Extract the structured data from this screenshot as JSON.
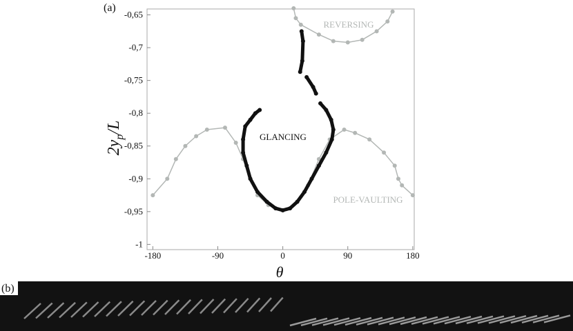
{
  "chart_data": {
    "type": "line",
    "panel_labels": [
      "(a)",
      "(b)"
    ],
    "xlabel": "θ",
    "ylabel": {
      "main": "2y",
      "sub": "p",
      "rest": "/L"
    },
    "xlim": [
      -188,
      182
    ],
    "ylim": [
      -1.008,
      -0.641
    ],
    "xticks": [
      -180,
      -90,
      0,
      90,
      180
    ],
    "yticks": [
      -1,
      {
        "value": -0.95,
        "label": "-0,95"
      },
      {
        "value": -0.9,
        "label": "-0,9"
      },
      {
        "value": -0.85,
        "label": "-0,85"
      },
      {
        "value": -0.8,
        "label": "-0,8"
      },
      {
        "value": -0.75,
        "label": "-0,75"
      },
      {
        "value": -0.7,
        "label": "-0,7"
      },
      {
        "value": -0.65,
        "label": "-0,65"
      }
    ],
    "annotations": [
      "REVERSING",
      "GLANCING",
      "POLE-VAULTING"
    ],
    "series": [
      {
        "name": "POLE-VAULTING",
        "color": "#b3b7b5",
        "x": [
          -180,
          -160,
          -148,
          -135,
          -120,
          -105,
          -80,
          -65,
          -55,
          -45,
          -35,
          -20,
          null,
          20,
          35,
          50,
          65,
          85,
          100,
          120,
          140,
          155,
          160,
          165,
          180
        ],
        "values": [
          -0.925,
          -0.9,
          -0.87,
          -0.85,
          -0.835,
          -0.825,
          -0.822,
          -0.845,
          -0.87,
          -0.9,
          -0.925,
          -0.94,
          null,
          -0.935,
          -0.91,
          -0.87,
          -0.84,
          -0.825,
          -0.83,
          -0.84,
          -0.86,
          -0.88,
          -0.9,
          -0.91,
          -0.925
        ]
      },
      {
        "name": "REVERSING",
        "color": "#b3b7b5",
        "x": [
          15,
          18,
          25,
          50,
          70,
          90,
          110,
          130,
          145,
          152
        ],
        "values": [
          -0.64,
          -0.655,
          -0.665,
          -0.68,
          -0.69,
          -0.692,
          -0.688,
          -0.675,
          -0.66,
          -0.645
        ]
      },
      {
        "name": "GLANCING",
        "color": "#111111",
        "x": [
          26,
          28,
          27,
          24,
          null,
          33,
          42,
          46,
          null,
          52,
          60,
          67,
          70,
          68,
          60,
          50,
          40,
          30,
          20,
          10,
          0,
          -10,
          -22,
          -35,
          -45,
          -50,
          -55,
          -55,
          -52,
          -45,
          -38,
          -32
        ],
        "values": [
          -0.675,
          -0.69,
          -0.72,
          -0.737,
          null,
          -0.745,
          -0.76,
          -0.77,
          null,
          -0.785,
          -0.795,
          -0.81,
          -0.825,
          -0.84,
          -0.86,
          -0.88,
          -0.9,
          -0.92,
          -0.935,
          -0.945,
          -0.948,
          -0.945,
          -0.935,
          -0.92,
          -0.9,
          -0.88,
          -0.86,
          -0.84,
          -0.82,
          -0.81,
          -0.8,
          -0.795
        ]
      }
    ]
  }
}
